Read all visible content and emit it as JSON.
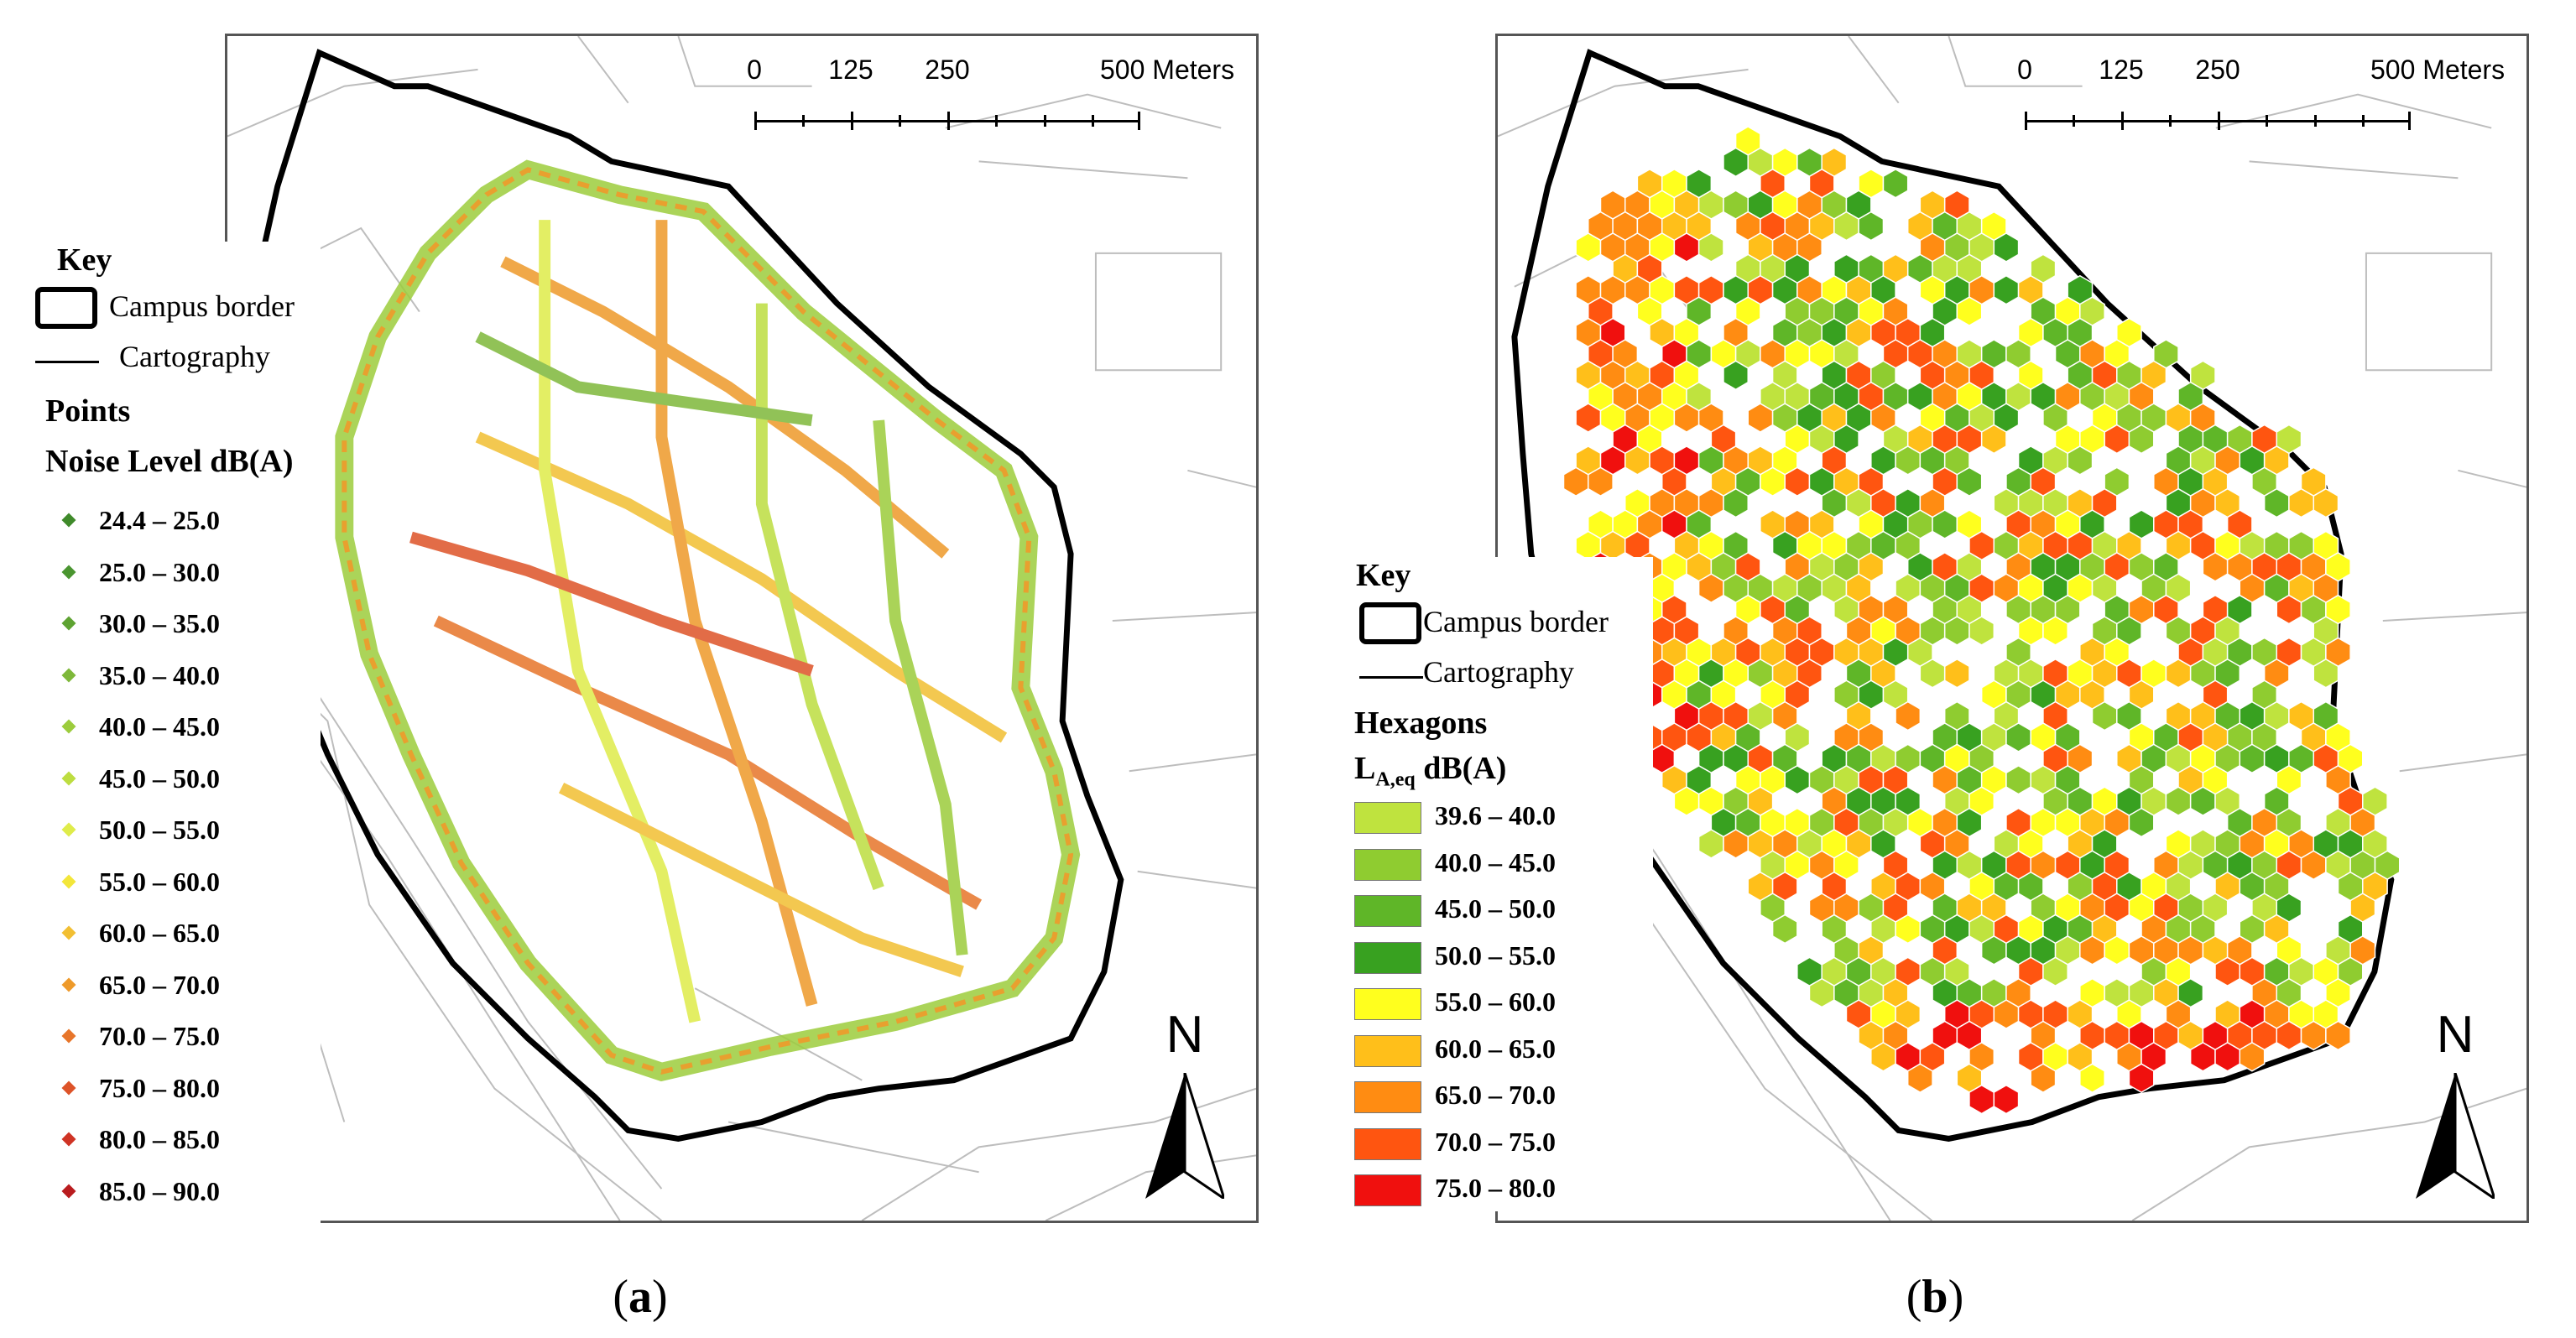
{
  "scale": {
    "ticks": [
      "0",
      "125",
      "250",
      "500 Meters"
    ]
  },
  "north": "N",
  "panels": [
    {
      "label": "a",
      "legend": {
        "key": "Key",
        "border": "Campus border",
        "carto": "Cartography",
        "group": "Points",
        "field": "Noise Level dB(A)",
        "items": [
          {
            "label": "24.4 – 25.0",
            "color": "#3f8a2a"
          },
          {
            "label": "25.0 – 30.0",
            "color": "#4a9530"
          },
          {
            "label": "30.0 – 35.0",
            "color": "#5ea332"
          },
          {
            "label": "35.0 – 40.0",
            "color": "#7eb83a"
          },
          {
            "label": "40.0 – 45.0",
            "color": "#9ccc3c"
          },
          {
            "label": "45.0 – 50.0",
            "color": "#bddd40"
          },
          {
            "label": "50.0 – 55.0",
            "color": "#dfec4a"
          },
          {
            "label": "55.0 – 60.0",
            "color": "#f3e63a"
          },
          {
            "label": "60.0 – 65.0",
            "color": "#f2bf32"
          },
          {
            "label": "65.0 – 70.0",
            "color": "#ee9a2a"
          },
          {
            "label": "70.0 – 75.0",
            "color": "#e7752a"
          },
          {
            "label": "75.0 – 80.0",
            "color": "#dd5328"
          },
          {
            "label": "80.0 – 85.0",
            "color": "#cf3324"
          },
          {
            "label": "85.0 – 90.0",
            "color": "#b91c1e"
          }
        ]
      }
    },
    {
      "label": "b",
      "legend": {
        "key": "Key",
        "border": "Campus border",
        "carto": "Cartography",
        "group": "Hexagons",
        "field_main": "L",
        "field_sub": "A,eq",
        "field_unit": " dB(A)",
        "items": [
          {
            "label": "39.6 – 40.0",
            "color": "#bfe33e"
          },
          {
            "label": "40.0 – 45.0",
            "color": "#8fcc30"
          },
          {
            "label": "45.0 – 50.0",
            "color": "#5fb628"
          },
          {
            "label": "50.0 – 55.0",
            "color": "#38a120"
          },
          {
            "label": "55.0 – 60.0",
            "color": "#ffff1e"
          },
          {
            "label": "60.0 – 65.0",
            "color": "#ffbf1a"
          },
          {
            "label": "65.0 – 70.0",
            "color": "#ff8c12"
          },
          {
            "label": "70.0 – 75.0",
            "color": "#ff5510"
          },
          {
            "label": "75.0 – 80.0",
            "color": "#f0100e"
          }
        ]
      }
    }
  ]
}
